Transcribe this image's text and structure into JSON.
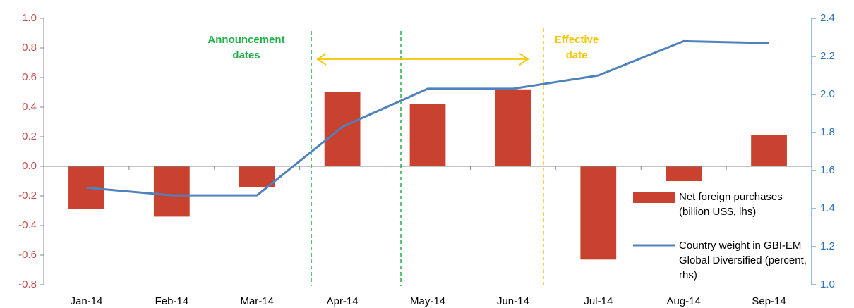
{
  "chart_data": {
    "type": "bar_line",
    "categories": [
      "Jan-14",
      "Feb-14",
      "Mar-14",
      "Apr-14",
      "May-14",
      "Jun-14",
      "Jul-14",
      "Aug-14",
      "Sep-14"
    ],
    "series": [
      {
        "name": "Net foreign purchases (billion US$, lhs)",
        "type": "bar",
        "axis": "y",
        "color": "#c9412f",
        "values": [
          -0.29,
          -0.34,
          -0.14,
          0.5,
          0.42,
          0.52,
          -0.63,
          -0.1,
          0.21
        ]
      },
      {
        "name": "Country weight in GBI-EM Global Diversified (percent, rhs)",
        "type": "line",
        "axis": "y2",
        "color": "#4f81bd",
        "values": [
          1.51,
          1.47,
          1.47,
          1.83,
          2.03,
          2.03,
          2.1,
          2.28,
          2.27
        ]
      }
    ],
    "ylim": [
      -0.8,
      1.0
    ],
    "yticks": [
      -0.8,
      -0.6,
      -0.4,
      -0.2,
      {
        "value": 0.0,
        "label": "0.0"
      },
      0.2,
      0.4,
      0.6,
      0.8,
      {
        "value": 1.0,
        "label": "1.0"
      }
    ],
    "y2lim": [
      1.0,
      2.4
    ],
    "y2ticks": [
      {
        "value": 1.0,
        "label": "1.0"
      },
      1.2,
      1.4,
      1.6,
      1.8,
      {
        "value": 2.0,
        "label": "2.0"
      },
      2.2,
      2.4
    ],
    "annotations": [
      "Announcement dates",
      "Effective date"
    ],
    "ytick_color": "#c0504d",
    "y2tick_color": "#2e75b6"
  }
}
